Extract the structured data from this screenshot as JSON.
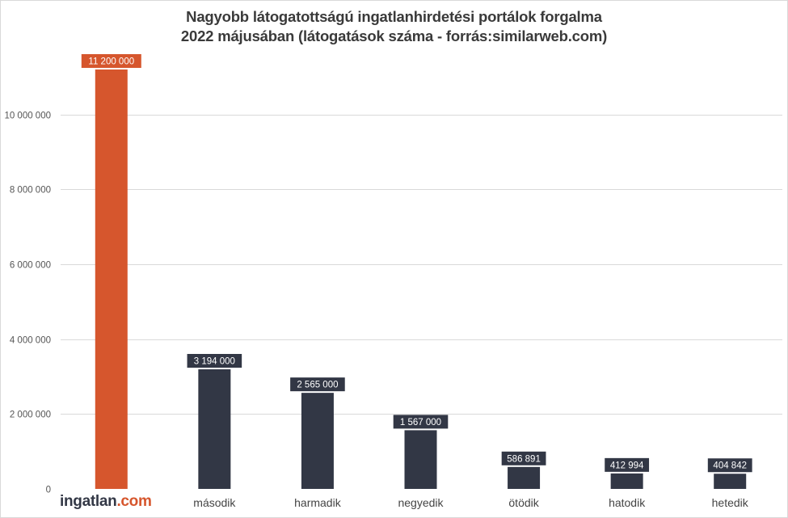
{
  "chart_data": {
    "type": "bar",
    "title": "Nagyobb látogatottságú ingatlanhirdetési portálok forgalma",
    "subtitle": "2022 májusában (látogatások száma - forrás:similarweb.com)",
    "categories": [
      "ingatlan.com",
      "második",
      "harmadik",
      "negyedik",
      "ötödik",
      "hatodik",
      "hetedik"
    ],
    "values": [
      11200000,
      3194000,
      2565000,
      1567000,
      586891,
      412994,
      404842
    ],
    "data_labels": [
      "11 200 000",
      "3 194 000",
      "2 565 000",
      "1 567 000",
      "586 891",
      "412 994",
      "404 842"
    ],
    "y_ticks": [
      0,
      2000000,
      4000000,
      6000000,
      8000000,
      10000000
    ],
    "y_tick_labels": [
      "0",
      "2 000 000",
      "4 000 000",
      "6 000 000",
      "8 000 000",
      "10 000 000"
    ],
    "ylim": [
      0,
      11200000
    ],
    "grid": true,
    "xlabel": "",
    "ylabel": "",
    "colors": {
      "highlight": "#d6562d",
      "default": "#323745",
      "grid": "#d9d9d9",
      "tick_text": "#555555"
    },
    "first_category_logo": {
      "part1": "ingatlan",
      "part2": ".com"
    }
  }
}
